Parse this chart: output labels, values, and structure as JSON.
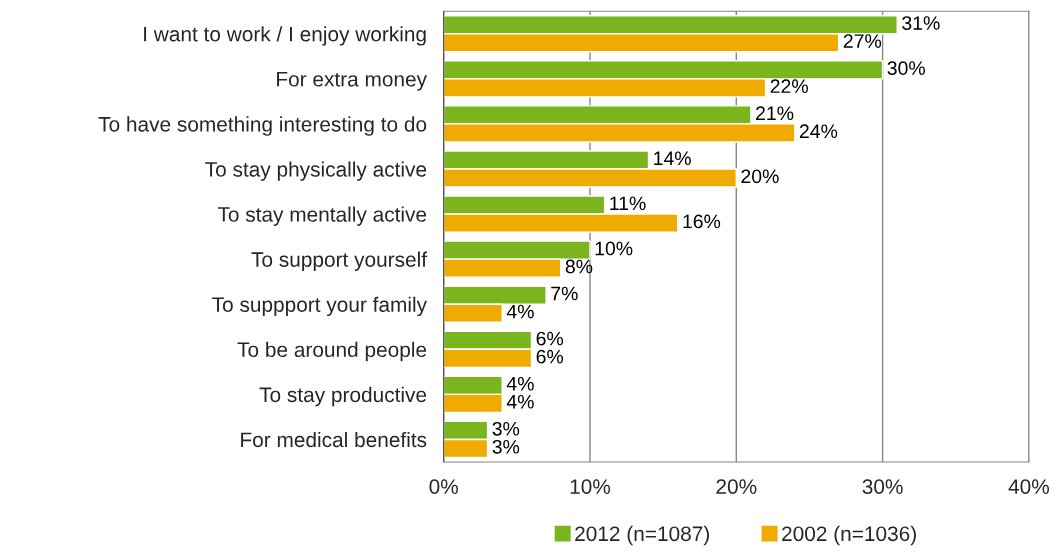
{
  "chart_data": {
    "type": "bar",
    "orientation": "horizontal",
    "categories": [
      "I want to work / I enjoy working",
      "For extra money",
      "To have something interesting to do",
      "To stay physically active",
      "To stay mentally active",
      "To support yourself",
      "To suppport your family",
      "To be around people",
      "To stay productive",
      "For medical benefits"
    ],
    "series": [
      {
        "name": "2012 (n=1087)",
        "color": "#7ab51d",
        "values": [
          31,
          30,
          21,
          14,
          11,
          10,
          7,
          6,
          4,
          3
        ],
        "value_labels": [
          "31%",
          "30%",
          "21%",
          "14%",
          "11%",
          "10%",
          "7%",
          "6%",
          "4%",
          "3%"
        ]
      },
      {
        "name": "2002 (n=1036)",
        "color": "#f0ab00",
        "values": [
          27,
          22,
          24,
          20,
          16,
          8,
          4,
          6,
          4,
          3
        ],
        "value_labels": [
          "27%",
          "22%",
          "24%",
          "20%",
          "16%",
          "8%",
          "4%",
          "6%",
          "4%",
          "3%"
        ]
      }
    ],
    "xlim": [
      0,
      40
    ],
    "xticks": [
      {
        "value": 0,
        "label": "0%"
      },
      {
        "value": 10,
        "label": "10%"
      },
      {
        "value": 20,
        "label": "20%"
      },
      {
        "value": 30,
        "label": "30%"
      },
      {
        "value": 40,
        "label": "40%"
      }
    ],
    "grid": "x",
    "legend": "bottom"
  }
}
